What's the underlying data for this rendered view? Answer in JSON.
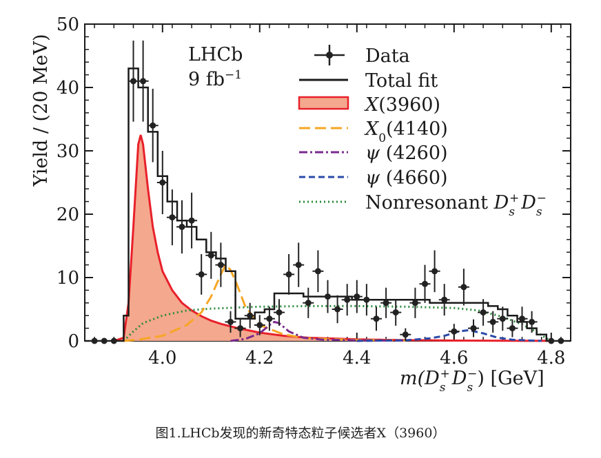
{
  "chart_data": {
    "type": "histogram-fit",
    "experiment_label": "LHCb",
    "luminosity_prefix": "9 fb",
    "luminosity_exponent": "−1",
    "ylabel": "Yield / (20  MeV)",
    "xlabel": {
      "prefix": "m(",
      "d1": "D",
      "d1_sub": "s",
      "d1_sup": "+",
      "d2": "D",
      "d2_sub": "s",
      "d2_sup": "−",
      "suffix": ") [GeV]"
    },
    "xlim": [
      3.84,
      4.84
    ],
    "ylim": [
      0,
      50
    ],
    "xticks": [
      {
        "value": 4.0,
        "label": "4.0"
      },
      {
        "value": 4.2,
        "label": "4.2"
      },
      {
        "value": 4.4,
        "label": "4.4"
      },
      {
        "value": 4.6,
        "label": "4.6"
      },
      {
        "value": 4.8,
        "label": "4.8"
      }
    ],
    "yticks": [
      {
        "value": 0,
        "label": "0"
      },
      {
        "value": 10,
        "label": "10"
      },
      {
        "value": 20,
        "label": "20"
      },
      {
        "value": 30,
        "label": "30"
      },
      {
        "value": 40,
        "label": "40"
      },
      {
        "value": 50,
        "label": "50"
      }
    ],
    "legend": {
      "data": "Data",
      "total": "Total fit",
      "x3960": {
        "name": "X",
        "mass": "(3960)"
      },
      "x4140": {
        "name": "X",
        "sub": "0",
        "mass": "(4140)"
      },
      "psi4260": {
        "name": "ψ",
        "mass": " (4260)"
      },
      "psi4660": {
        "name": "ψ",
        "mass": " (4660)"
      },
      "nonres": {
        "prefix": "Nonresonant ",
        "d1": "D",
        "d1_sub": "s",
        "d1_sup": "+",
        "d2": "D",
        "d2_sub": "s",
        "d2_sup": "−"
      }
    },
    "colors": {
      "data": "#222222",
      "total": "#1a1a1a",
      "x3960_line": "#e8202a",
      "x3960_fill": "#f4a88e",
      "x4140": "#f6a623",
      "psi4260": "#7a2a8c",
      "psi4660": "#2a4aa8",
      "nonres": "#2a8a3a"
    },
    "data_points": [
      {
        "x": 3.86,
        "y": 0,
        "err": 0
      },
      {
        "x": 3.88,
        "y": 0,
        "err": 0
      },
      {
        "x": 3.9,
        "y": 0,
        "err": 0
      },
      {
        "x": 3.94,
        "y": 41,
        "err": 6.4
      },
      {
        "x": 3.96,
        "y": 41,
        "err": 6.4
      },
      {
        "x": 3.98,
        "y": 34,
        "err": 5.8
      },
      {
        "x": 4.0,
        "y": 25,
        "err": 5.0
      },
      {
        "x": 4.02,
        "y": 19.5,
        "err": 4.4
      },
      {
        "x": 4.04,
        "y": 18,
        "err": 4.2
      },
      {
        "x": 4.06,
        "y": 19,
        "err": 4.4
      },
      {
        "x": 4.08,
        "y": 10.5,
        "err": 3.2
      },
      {
        "x": 4.1,
        "y": 13.5,
        "err": 3.7
      },
      {
        "x": 4.12,
        "y": 12,
        "err": 3.5
      },
      {
        "x": 4.14,
        "y": 3,
        "err": 1.7
      },
      {
        "x": 4.16,
        "y": 2,
        "err": 1.4
      },
      {
        "x": 4.18,
        "y": 4,
        "err": 2.0
      },
      {
        "x": 4.2,
        "y": 2.5,
        "err": 1.6
      },
      {
        "x": 4.22,
        "y": 3.5,
        "err": 1.9
      },
      {
        "x": 4.24,
        "y": 4.5,
        "err": 2.1
      },
      {
        "x": 4.26,
        "y": 10.5,
        "err": 3.2
      },
      {
        "x": 4.28,
        "y": 12,
        "err": 3.5
      },
      {
        "x": 4.3,
        "y": 6,
        "err": 2.4
      },
      {
        "x": 4.32,
        "y": 11,
        "err": 3.3
      },
      {
        "x": 4.34,
        "y": 7,
        "err": 2.6
      },
      {
        "x": 4.36,
        "y": 5,
        "err": 2.2
      },
      {
        "x": 4.38,
        "y": 6.5,
        "err": 2.5
      },
      {
        "x": 4.4,
        "y": 7,
        "err": 2.6
      },
      {
        "x": 4.42,
        "y": 6.5,
        "err": 2.5
      },
      {
        "x": 4.44,
        "y": 3.5,
        "err": 1.9
      },
      {
        "x": 4.46,
        "y": 6,
        "err": 2.4
      },
      {
        "x": 4.48,
        "y": 4.5,
        "err": 2.1
      },
      {
        "x": 4.5,
        "y": 1,
        "err": 1.0
      },
      {
        "x": 4.52,
        "y": 6,
        "err": 2.4
      },
      {
        "x": 4.54,
        "y": 9,
        "err": 3.0
      },
      {
        "x": 4.56,
        "y": 11,
        "err": 3.3
      },
      {
        "x": 4.58,
        "y": 6.5,
        "err": 2.5
      },
      {
        "x": 4.6,
        "y": 1.5,
        "err": 1.2
      },
      {
        "x": 4.62,
        "y": 8.5,
        "err": 2.9
      },
      {
        "x": 4.64,
        "y": 2,
        "err": 1.4
      },
      {
        "x": 4.66,
        "y": 4.5,
        "err": 2.1
      },
      {
        "x": 4.68,
        "y": 3,
        "err": 1.7
      },
      {
        "x": 4.7,
        "y": 3.5,
        "err": 1.9
      },
      {
        "x": 4.72,
        "y": 2,
        "err": 1.4
      },
      {
        "x": 4.74,
        "y": 3.5,
        "err": 1.9
      },
      {
        "x": 4.76,
        "y": 3,
        "err": 1.7
      },
      {
        "x": 4.8,
        "y": 0,
        "err": 0
      },
      {
        "x": 4.82,
        "y": 0,
        "err": 0
      }
    ],
    "total_fit": {
      "bin_edges": [
        3.84,
        3.92,
        3.93,
        3.95,
        3.97,
        3.99,
        4.01,
        4.03,
        4.05,
        4.07,
        4.09,
        4.11,
        4.13,
        4.15,
        4.17,
        4.19,
        4.21,
        4.23,
        4.25,
        4.27,
        4.29,
        4.31,
        4.33,
        4.35,
        4.37,
        4.39,
        4.41,
        4.43,
        4.45,
        4.47,
        4.49,
        4.51,
        4.53,
        4.55,
        4.57,
        4.59,
        4.61,
        4.63,
        4.65,
        4.67,
        4.69,
        4.71,
        4.73,
        4.75,
        4.77,
        4.79,
        4.84
      ],
      "values": [
        0,
        4,
        43,
        40,
        33,
        26,
        22,
        19,
        18,
        16,
        14,
        13,
        11,
        3.5,
        3.5,
        4.5,
        5,
        7.5,
        7.5,
        7.5,
        7,
        7,
        7,
        7,
        7,
        6.5,
        6.5,
        6.5,
        6.5,
        6.5,
        6.5,
        6.5,
        6.5,
        6,
        6,
        6,
        6,
        6,
        6,
        5.5,
        5,
        4,
        3,
        2,
        1,
        0
      ]
    },
    "components": {
      "x3960_points": [
        [
          3.9,
          0
        ],
        [
          3.92,
          0.5
        ],
        [
          3.93,
          6
        ],
        [
          3.94,
          18
        ],
        [
          3.95,
          31
        ],
        [
          3.955,
          32.5
        ],
        [
          3.96,
          31
        ],
        [
          3.97,
          24
        ],
        [
          3.98,
          18
        ],
        [
          3.99,
          14
        ],
        [
          4.0,
          11
        ],
        [
          4.02,
          8
        ],
        [
          4.04,
          6
        ],
        [
          4.06,
          4.8
        ],
        [
          4.08,
          3.9
        ],
        [
          4.1,
          3.2
        ],
        [
          4.12,
          2.7
        ],
        [
          4.15,
          2.1
        ],
        [
          4.2,
          1.3
        ],
        [
          4.25,
          0.8
        ],
        [
          4.3,
          0.5
        ],
        [
          4.4,
          0.25
        ],
        [
          4.5,
          0.12
        ],
        [
          4.6,
          0.05
        ],
        [
          4.7,
          0.02
        ],
        [
          4.8,
          0.01
        ]
      ],
      "x4140_points": [
        [
          3.92,
          0
        ],
        [
          3.95,
          0.2
        ],
        [
          4.0,
          0.8
        ],
        [
          4.05,
          2.5
        ],
        [
          4.08,
          4.5
        ],
        [
          4.1,
          7
        ],
        [
          4.12,
          10.5
        ],
        [
          4.13,
          12
        ],
        [
          4.14,
          11.2
        ],
        [
          4.15,
          9.5
        ],
        [
          4.17,
          5.5
        ],
        [
          4.2,
          2.5
        ],
        [
          4.25,
          1
        ],
        [
          4.3,
          0.4
        ],
        [
          4.4,
          0.15
        ],
        [
          4.5,
          0.05
        ]
      ],
      "psi4260_points": [
        [
          4.14,
          0
        ],
        [
          4.17,
          0.3
        ],
        [
          4.2,
          1.2
        ],
        [
          4.22,
          2.5
        ],
        [
          4.23,
          3
        ],
        [
          4.24,
          2.8
        ],
        [
          4.26,
          1.5
        ],
        [
          4.29,
          0.5
        ],
        [
          4.33,
          0.2
        ],
        [
          4.4,
          0.1
        ],
        [
          4.5,
          0.05
        ]
      ],
      "psi4660_points": [
        [
          4.4,
          0
        ],
        [
          4.5,
          0.1
        ],
        [
          4.55,
          0.4
        ],
        [
          4.58,
          0.8
        ],
        [
          4.61,
          1.5
        ],
        [
          4.63,
          1.7
        ],
        [
          4.66,
          1.2
        ],
        [
          4.69,
          0.5
        ],
        [
          4.72,
          0.2
        ],
        [
          4.78,
          0
        ]
      ],
      "nonres_points": [
        [
          3.92,
          0
        ],
        [
          3.94,
          1.5
        ],
        [
          3.96,
          2.8
        ],
        [
          4.0,
          4
        ],
        [
          4.05,
          4.8
        ],
        [
          4.1,
          5.1
        ],
        [
          4.2,
          5.4
        ],
        [
          4.3,
          5.5
        ],
        [
          4.4,
          5.5
        ],
        [
          4.5,
          5.4
        ],
        [
          4.6,
          5.2
        ],
        [
          4.65,
          4.8
        ],
        [
          4.7,
          3.8
        ],
        [
          4.74,
          2.6
        ],
        [
          4.77,
          1.4
        ],
        [
          4.79,
          0.4
        ],
        [
          4.8,
          0
        ]
      ]
    }
  },
  "caption": "图1.LHCb发现的新奇特态粒子候选者X（3960）"
}
